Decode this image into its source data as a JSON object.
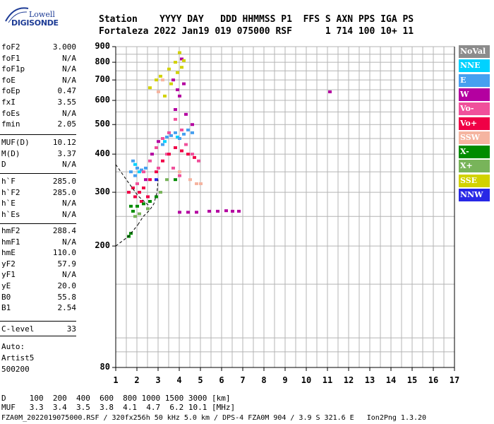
{
  "logo": {
    "top": "Lowell",
    "bottom": "DIGISONDE"
  },
  "header": {
    "line1": "Station    YYYY DAY   DDD HHMMSS P1  FFS S AXN PPS IGA PS",
    "line2": "Fortaleza 2022 Jan19 019 075000 RSF      1 714 100 10+ 11"
  },
  "params_group1": [
    {
      "name": "foF2",
      "value": "3.000"
    },
    {
      "name": "foF1",
      "value": "N/A"
    },
    {
      "name": "foF1p",
      "value": "N/A"
    },
    {
      "name": "foE",
      "value": "N/A"
    },
    {
      "name": "foEp",
      "value": "0.47"
    },
    {
      "name": "fxI",
      "value": "3.55"
    },
    {
      "name": "foEs",
      "value": "N/A"
    },
    {
      "name": "fmin",
      "value": "2.05"
    }
  ],
  "params_group2": [
    {
      "name": "MUF(D)",
      "value": "10.12"
    },
    {
      "name": "M(D)",
      "value": "3.37"
    },
    {
      "name": "D",
      "value": "N/A"
    }
  ],
  "params_group3": [
    {
      "name": "h`F",
      "value": "285.0"
    },
    {
      "name": "h`F2",
      "value": "285.0"
    },
    {
      "name": "h`E",
      "value": "N/A"
    },
    {
      "name": "h`Es",
      "value": "N/A"
    }
  ],
  "params_group4": [
    {
      "name": "hmF2",
      "value": "288.4"
    },
    {
      "name": "hmF1",
      "value": "N/A"
    },
    {
      "name": "hmE",
      "value": "110.0"
    },
    {
      "name": "yF2",
      "value": "57.9"
    },
    {
      "name": "yF1",
      "value": "N/A"
    },
    {
      "name": "yE",
      "value": "20.0"
    },
    {
      "name": "B0",
      "value": "55.8"
    },
    {
      "name": "B1",
      "value": "2.54"
    }
  ],
  "clevel": {
    "name": "C-level",
    "value": "33"
  },
  "auto": {
    "line1": "Auto:",
    "line2": "Artist5",
    "line3": "500200"
  },
  "legend": [
    {
      "label": "NoVal",
      "color": "#8c8c8c"
    },
    {
      "label": "NNE",
      "color": "#00d2ff"
    },
    {
      "label": "E",
      "color": "#46a0f0"
    },
    {
      "label": "W",
      "color": "#b400a0"
    },
    {
      "label": "Vo-",
      "color": "#f0509b"
    },
    {
      "label": "Vo+",
      "color": "#f00046"
    },
    {
      "label": "SSW",
      "color": "#f5b4a0"
    },
    {
      "label": "X-",
      "color": "#008c00"
    },
    {
      "label": "X+",
      "color": "#78b45a"
    },
    {
      "label": "SSE",
      "color": "#d2d200"
    },
    {
      "label": "NNW",
      "color": "#2828e6"
    }
  ],
  "bottom": {
    "line1": "D     100  200  400  600  800 1000 1500 3000 [km]",
    "line2": "MUF   3.3  3.4  3.5  3.8  4.1  4.7  6.2 10.1 [MHz]",
    "line3": "FZA0M_2022019075000.RSF / 320fx256h 50 kHz 5.0 km / DPS-4 FZA0M 904 / 3.9 S 321.6 E   Ion2Png 1.3.20"
  },
  "chart_data": {
    "type": "scatter",
    "title": "",
    "xlabel": "",
    "ylabel": "",
    "xlim": [
      1,
      17
    ],
    "ylim": [
      80,
      900
    ],
    "x_ticks": [
      1,
      2,
      3,
      4,
      5,
      6,
      7,
      8,
      9,
      10,
      11,
      12,
      13,
      14,
      15,
      16,
      17
    ],
    "y_ticks": [
      80,
      200,
      300,
      400,
      500,
      600,
      700,
      800,
      900
    ],
    "y_scale": "log",
    "grid": true,
    "legend_position": "right",
    "series": [
      {
        "name": "NoVal",
        "points": []
      },
      {
        "name": "NNE",
        "points": [
          [
            1.9,
            370
          ],
          [
            2.1,
            350
          ],
          [
            3.3,
            440
          ],
          [
            3.5,
            470
          ],
          [
            3.9,
            455
          ]
        ]
      },
      {
        "name": "E",
        "points": [
          [
            1.7,
            350
          ],
          [
            1.8,
            380
          ],
          [
            1.9,
            340
          ],
          [
            2.0,
            360
          ],
          [
            2.2,
            355
          ],
          [
            2.4,
            360
          ],
          [
            3.2,
            430
          ],
          [
            3.4,
            455
          ],
          [
            3.6,
            460
          ],
          [
            3.8,
            470
          ],
          [
            4.0,
            450
          ],
          [
            4.2,
            465
          ],
          [
            4.4,
            480
          ],
          [
            4.6,
            470
          ]
        ]
      },
      {
        "name": "W",
        "points": [
          [
            3.7,
            700
          ],
          [
            3.9,
            650
          ],
          [
            4.0,
            620
          ],
          [
            4.1,
            820
          ],
          [
            4.2,
            680
          ],
          [
            3.8,
            560
          ],
          [
            4.3,
            540
          ],
          [
            4.6,
            500
          ],
          [
            2.4,
            330
          ],
          [
            2.7,
            400
          ],
          [
            3.0,
            440
          ],
          [
            4.0,
            258
          ],
          [
            4.4,
            258
          ],
          [
            4.8,
            258
          ],
          [
            5.4,
            260
          ],
          [
            5.8,
            260
          ],
          [
            6.2,
            261
          ],
          [
            6.5,
            260
          ],
          [
            6.8,
            260
          ],
          [
            11.1,
            640
          ]
        ]
      },
      {
        "name": "Vo-",
        "points": [
          [
            2.0,
            320
          ],
          [
            2.3,
            350
          ],
          [
            2.6,
            380
          ],
          [
            2.9,
            420
          ],
          [
            3.2,
            450
          ],
          [
            3.5,
            470
          ],
          [
            3.8,
            520
          ],
          [
            4.1,
            480
          ],
          [
            4.3,
            430
          ],
          [
            4.6,
            400
          ],
          [
            4.9,
            380
          ],
          [
            3.0,
            360
          ],
          [
            3.4,
            400
          ],
          [
            3.7,
            360
          ],
          [
            4.0,
            340
          ]
        ]
      },
      {
        "name": "Vo+",
        "points": [
          [
            1.6,
            300
          ],
          [
            1.8,
            310
          ],
          [
            1.9,
            290
          ],
          [
            2.1,
            300
          ],
          [
            2.3,
            310
          ],
          [
            2.6,
            330
          ],
          [
            2.9,
            350
          ],
          [
            3.2,
            380
          ],
          [
            3.5,
            400
          ],
          [
            3.8,
            420
          ],
          [
            4.1,
            410
          ],
          [
            4.4,
            400
          ],
          [
            4.7,
            390
          ],
          [
            2.2,
            280
          ],
          [
            2.5,
            290
          ]
        ]
      },
      {
        "name": "SSW",
        "points": [
          [
            3.0,
            640
          ],
          [
            3.2,
            700
          ],
          [
            4.0,
            350
          ],
          [
            4.5,
            330
          ],
          [
            4.8,
            320
          ],
          [
            5.0,
            320
          ]
        ]
      },
      {
        "name": "X-",
        "points": [
          [
            1.7,
            270
          ],
          [
            1.8,
            260
          ],
          [
            2.0,
            270
          ],
          [
            2.3,
            275
          ],
          [
            2.6,
            280
          ],
          [
            2.9,
            290
          ],
          [
            1.6,
            215
          ],
          [
            1.7,
            220
          ],
          [
            3.8,
            330
          ]
        ]
      },
      {
        "name": "X+",
        "points": [
          [
            1.9,
            250
          ],
          [
            2.1,
            255
          ],
          [
            2.5,
            265
          ],
          [
            3.1,
            300
          ],
          [
            3.4,
            330
          ]
        ]
      },
      {
        "name": "SSE",
        "points": [
          [
            3.1,
            720
          ],
          [
            3.5,
            760
          ],
          [
            3.8,
            800
          ],
          [
            4.0,
            860
          ],
          [
            4.2,
            810
          ],
          [
            3.6,
            680
          ],
          [
            2.9,
            700
          ],
          [
            2.6,
            660
          ],
          [
            3.3,
            620
          ],
          [
            3.9,
            740
          ],
          [
            4.1,
            770
          ]
        ]
      },
      {
        "name": "NNW",
        "points": [
          [
            2.9,
            330
          ]
        ]
      }
    ]
  }
}
